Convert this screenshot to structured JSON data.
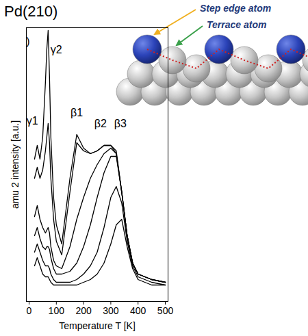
{
  "chart_data": {
    "type": "line",
    "title": "Pd(210)",
    "x_label": "Temperature T [K]",
    "y_label": "amu 2 intensity [a.u.]",
    "xlim": [
      -10,
      510
    ],
    "xticks": [
      0,
      100,
      200,
      300,
      400,
      500
    ],
    "ylim": [
      0,
      100
    ],
    "yticks": [],
    "tick_labels": "x",
    "grid": false,
    "x": [
      20,
      30,
      40,
      50,
      60,
      65,
      70,
      75,
      80,
      90,
      100,
      120,
      150,
      175,
      200,
      225,
      250,
      275,
      300,
      320,
      340,
      360,
      380,
      400,
      450,
      500
    ],
    "series": [
      {
        "color": "#000000",
        "values": [
          52,
          57,
          52,
          60,
          80,
          92,
          99,
          82,
          60,
          38,
          28,
          21,
          45,
          61,
          56,
          54,
          55,
          57,
          57,
          55,
          40,
          24,
          14,
          10,
          8,
          7
        ]
      },
      {
        "color": "#000000",
        "values": [
          45,
          49,
          45,
          48,
          55,
          60,
          65,
          58,
          45,
          30,
          22,
          17,
          40,
          58,
          55,
          54,
          55,
          57,
          57,
          54,
          40,
          24,
          14,
          10,
          8,
          7
        ]
      },
      {
        "color": "#000000",
        "values": [
          31,
          35,
          30,
          27,
          25,
          26,
          27,
          25,
          20,
          15,
          13,
          12,
          20,
          30,
          38,
          45,
          50,
          54,
          56,
          54,
          40,
          24,
          14,
          10,
          8,
          7
        ]
      },
      {
        "color": "#000000",
        "values": [
          24,
          27,
          23,
          20,
          19,
          20,
          20,
          19,
          16,
          12,
          10,
          10,
          11,
          14,
          20,
          28,
          38,
          47,
          53,
          53,
          40,
          24,
          14,
          10,
          8,
          7
        ]
      },
      {
        "color": "#000000",
        "values": [
          18,
          21,
          18,
          15,
          13,
          13,
          13,
          12,
          10,
          8,
          7,
          7,
          7,
          8,
          10,
          13,
          18,
          27,
          38,
          42,
          36,
          22,
          13,
          9,
          7,
          6
        ]
      },
      {
        "color": "#000000",
        "values": [
          13,
          16,
          13,
          10,
          9,
          9,
          9,
          8,
          7,
          6,
          6,
          6,
          6,
          6,
          7,
          8,
          10,
          14,
          21,
          28,
          30,
          20,
          12,
          8,
          6,
          6
        ]
      }
    ],
    "line_style": "solid",
    "annotations": [
      {
        "text": ")",
        "x": -4,
        "y": 95
      },
      {
        "text": "γ1",
        "x": 12,
        "y": 66
      },
      {
        "text": "γ2",
        "x": 100,
        "y": 92
      },
      {
        "text": "β1",
        "x": 175,
        "y": 69
      },
      {
        "text": "β2",
        "x": 262,
        "y": 65
      },
      {
        "text": "β3",
        "x": 335,
        "y": 65
      }
    ],
    "inset_labels": [
      "Step edge atom",
      "Terrace atom"
    ]
  }
}
